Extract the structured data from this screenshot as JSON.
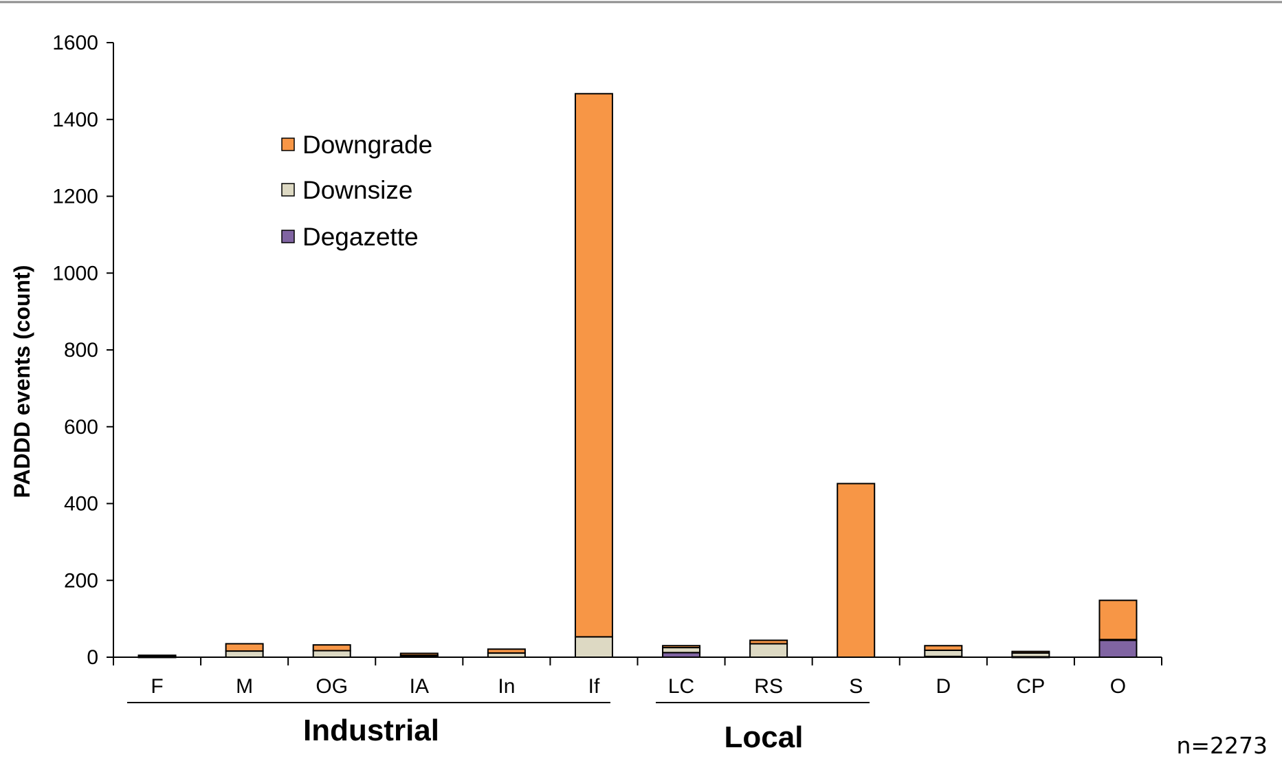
{
  "chart_data": {
    "type": "bar",
    "stacked": true,
    "categories": [
      "F",
      "M",
      "OG",
      "IA",
      "In",
      "If",
      "LC",
      "RS",
      "S",
      "D",
      "CP",
      "O"
    ],
    "series": [
      {
        "name": "Degazette",
        "color": "#8064a2",
        "values": [
          1,
          0,
          0,
          2,
          0,
          0,
          12,
          0,
          0,
          2,
          1,
          44
        ]
      },
      {
        "name": "Downsize",
        "color": "#ddd9c3",
        "values": [
          2,
          16,
          17,
          3,
          11,
          53,
          13,
          35,
          0,
          16,
          10,
          2
        ]
      },
      {
        "name": "Downgrade",
        "color": "#f79646",
        "values": [
          2,
          19,
          15,
          5,
          10,
          1414,
          5,
          9,
          452,
          12,
          4,
          102
        ]
      }
    ],
    "ylabel": "PADDD events (count)",
    "xlabel": "",
    "ylim": [
      0,
      1600
    ],
    "yticks": [
      "0",
      "200",
      "400",
      "600",
      "800",
      "1000",
      "1200",
      "1400",
      "1600"
    ],
    "legend": {
      "placement": "top-left",
      "entries": [
        "Downgrade",
        "Downsize",
        "Degazette"
      ]
    },
    "groups": [
      {
        "label": "Industrial",
        "categories": [
          "F",
          "M",
          "OG",
          "IA",
          "In",
          "If"
        ]
      },
      {
        "label": "Local",
        "categories": [
          "LC",
          "RS",
          "S"
        ]
      }
    ],
    "grid": false,
    "annotation": "n=2273"
  }
}
